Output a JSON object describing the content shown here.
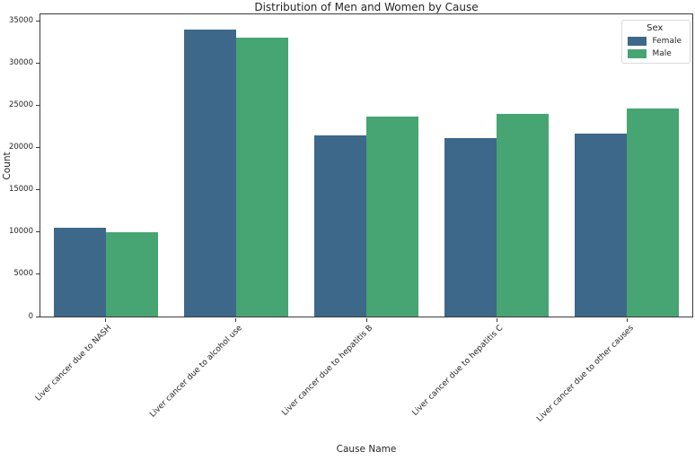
{
  "chart_data": {
    "type": "bar",
    "title": "Distribution of Men and Women by Cause",
    "xlabel": "Cause Name",
    "ylabel": "Count",
    "categories": [
      "Liver cancer due to NASH",
      "Liver cancer due to alcohol use",
      "Liver cancer due to hepatitis B",
      "Liver cancer due to hepatitis C",
      "Liver cancer due to other causes"
    ],
    "series": [
      {
        "name": "Female",
        "color": "#3d688a",
        "values": [
          10500,
          34000,
          21400,
          21100,
          21700
        ]
      },
      {
        "name": "Male",
        "color": "#47a473",
        "values": [
          10000,
          33000,
          23700,
          24000,
          24600
        ]
      }
    ],
    "ylim": [
      0,
      35760
    ],
    "yticks": [
      0,
      5000,
      10000,
      15000,
      20000,
      25000,
      30000,
      35000
    ],
    "legend": {
      "title": "Sex",
      "position": "upper right"
    },
    "grid": false
  }
}
